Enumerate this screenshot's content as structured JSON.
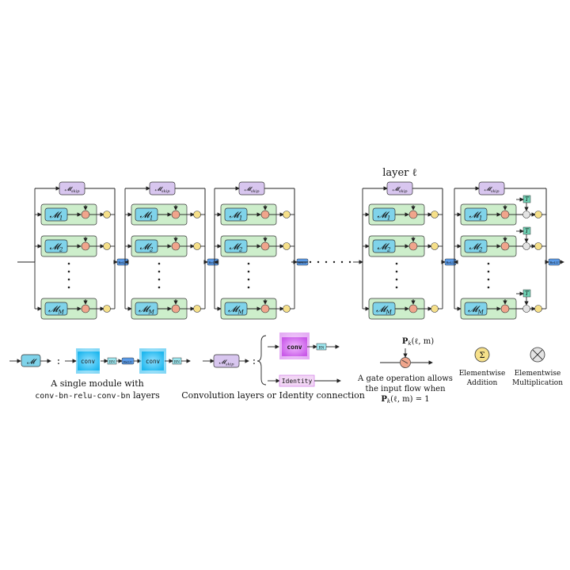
{
  "layer_title": "layer ℓ",
  "module_skip": "M_skip",
  "modules": [
    "M_1",
    "M_2",
    "M_M"
  ],
  "relu_label": "ReLU",
  "conv_label": "conv",
  "bn_label": "BN",
  "identity_label": "Identity",
  "t_label": "T",
  "gate_label": "P_k(ℓ, m)",
  "legend": {
    "module_caption_line1": "A single module with",
    "module_caption_line2_code": "conv-bn-relu-conv-bn",
    "module_caption_line2_tail": " layers",
    "skip_caption": "Convolution layers or Identity connection",
    "gate_caption_line1": "A gate operation allows",
    "gate_caption_line2": "the input flow when",
    "gate_caption_line3": "P_k(ℓ, m) = 1",
    "add_caption_line1": "Elementwise",
    "add_caption_line2": "Addition",
    "mul_caption_line1": "Elementwise",
    "mul_caption_line2": "Multiplication"
  },
  "colors": {
    "module_bg": "#cdeecb",
    "module_inner": "#7fd3ea",
    "skip_box": "#d8c6ef",
    "gate": "#f0a58c",
    "add_node": "#f6e08a",
    "relu": "#5b9be8",
    "conv_blue": "#35c2f0",
    "conv_purple": "#d77ef0",
    "t_box": "#6fd1b4"
  }
}
